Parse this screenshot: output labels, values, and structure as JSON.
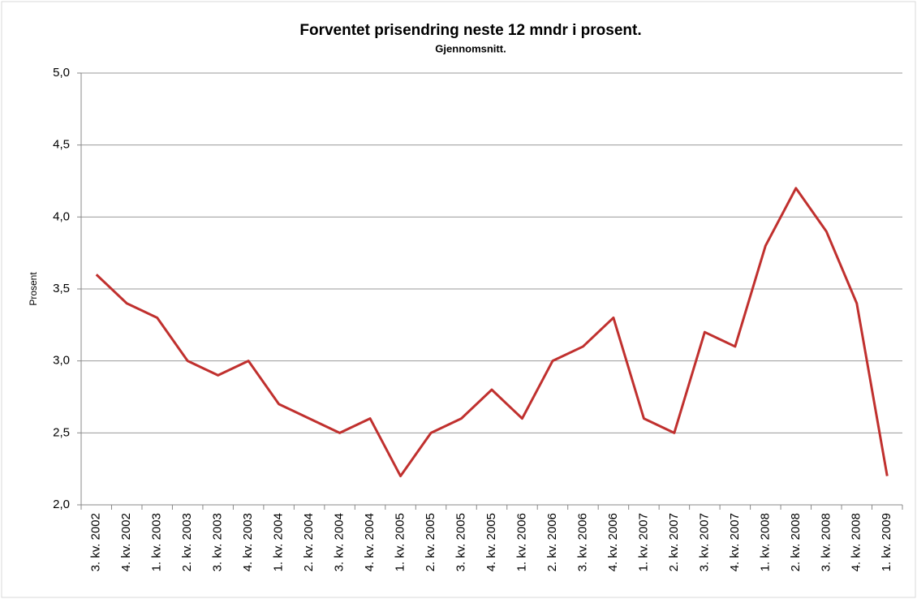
{
  "chart_data": {
    "type": "line",
    "title": "Forventet prisendring neste 12 mndr i prosent.",
    "subtitle": "Gjennomsnitt.",
    "y_label": "Prosent",
    "categories": [
      "3. kv. 2002",
      "4. kv. 2002",
      "1. kv. 2003",
      "2. kv. 2003",
      "3. kv. 2003",
      "4. kv. 2003",
      "1. kv. 2004",
      "2. kv. 2004",
      "3. kv. 2004",
      "4. kv. 2004",
      "1. kv. 2005",
      "2. kv. 2005",
      "3. kv. 2005",
      "4. kv. 2005",
      "1. kv. 2006",
      "2. kv. 2006",
      "3. kv. 2006",
      "4. kv. 2006",
      "1. kv. 2007",
      "2. kv. 2007",
      "3. kv. 2007",
      "4. kv. 2007",
      "1. kv. 2008",
      "2. kv. 2008",
      "3. kv. 2008",
      "4. kv. 2008",
      "1. kv. 2009"
    ],
    "values": [
      3.6,
      3.4,
      3.3,
      3.0,
      2.9,
      3.0,
      2.7,
      2.6,
      2.5,
      2.6,
      2.2,
      2.5,
      2.6,
      2.8,
      2.6,
      3.0,
      3.1,
      3.3,
      2.6,
      2.5,
      3.2,
      3.1,
      3.8,
      4.2,
      3.9,
      3.4,
      2.2
    ],
    "color": "#c0302e",
    "ylim": [
      2.0,
      5.0
    ],
    "yticks": [
      {
        "value": 2.0,
        "label": "2,0"
      },
      {
        "value": 2.5,
        "label": "2,5"
      },
      {
        "value": 3.0,
        "label": "3,0"
      },
      {
        "value": 3.5,
        "label": "3,5"
      },
      {
        "value": 4.0,
        "label": "4,0"
      },
      {
        "value": 4.5,
        "label": "4,5"
      },
      {
        "value": 5.0,
        "label": "5,0"
      }
    ],
    "grid": true
  }
}
